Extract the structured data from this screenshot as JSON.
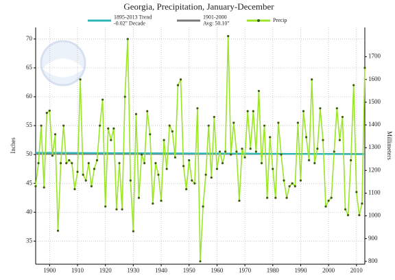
{
  "chart_data": {
    "type": "line",
    "title": "Georgia, Precipitation, January-December",
    "y_label": "Inches",
    "y2_label": "Millimeters",
    "xlim": [
      1895,
      2013
    ],
    "xticks": [
      1900,
      1910,
      1920,
      1930,
      1940,
      1950,
      1960,
      1970,
      1980,
      1990,
      2000,
      2010
    ],
    "ylim": [
      31,
      72
    ],
    "yticks": [
      35,
      40,
      45,
      50,
      55,
      60,
      65,
      70
    ],
    "y2lim": [
      787.4,
      1828.8
    ],
    "y2ticks": [
      800,
      900,
      1000,
      1100,
      1200,
      1300,
      1400,
      1500,
      1600,
      1700
    ],
    "grid": true,
    "series": [
      {
        "name": [
          "Precip"
        ],
        "color": "#99e526",
        "marker_color": "#3d5c0a",
        "x": [
          1895,
          1896,
          1897,
          1898,
          1899,
          1900,
          1901,
          1902,
          1903,
          1904,
          1905,
          1906,
          1907,
          1908,
          1909,
          1910,
          1911,
          1912,
          1913,
          1914,
          1915,
          1916,
          1917,
          1918,
          1919,
          1920,
          1921,
          1922,
          1923,
          1924,
          1925,
          1926,
          1927,
          1928,
          1929,
          1930,
          1931,
          1932,
          1933,
          1934,
          1935,
          1936,
          1937,
          1938,
          1939,
          1940,
          1941,
          1942,
          1943,
          1944,
          1945,
          1946,
          1947,
          1948,
          1949,
          1950,
          1951,
          1952,
          1953,
          1954,
          1955,
          1956,
          1957,
          1958,
          1959,
          1960,
          1961,
          1962,
          1963,
          1964,
          1965,
          1966,
          1967,
          1968,
          1969,
          1970,
          1971,
          1972,
          1973,
          1974,
          1975,
          1976,
          1977,
          1978,
          1979,
          1980,
          1981,
          1982,
          1983,
          1984,
          1985,
          1986,
          1987,
          1988,
          1989,
          1990,
          1991,
          1992,
          1993,
          1994,
          1995,
          1996,
          1997,
          1998,
          1999,
          2000,
          2001,
          2002,
          2003,
          2004,
          2005,
          2006,
          2007,
          2008,
          2009,
          2010,
          2011,
          2012,
          2013
        ],
        "values": [
          44.5,
          48.5,
          55,
          44.3,
          57.2,
          57.6,
          49.8,
          53.5,
          36.8,
          48.5,
          55,
          48.5,
          49,
          48.5,
          44,
          47,
          63,
          46.5,
          45.5,
          48.5,
          44.5,
          47.5,
          49,
          55,
          59.5,
          41,
          54.5,
          52.5,
          54.5,
          40.5,
          48.5,
          40.5,
          60,
          70,
          45.5,
          36.7,
          57,
          42.5,
          50,
          48.5,
          57.5,
          53.5,
          41.5,
          48.5,
          46.5,
          42,
          52.5,
          47.5,
          55,
          54,
          49.5,
          62,
          63,
          48,
          44,
          49,
          45.5,
          45,
          58,
          31.5,
          41,
          46.5,
          55,
          46,
          56.5,
          47.5,
          50.5,
          48.5,
          50.5,
          70.5,
          50,
          55.5,
          50.5,
          42,
          51,
          49.5,
          57.5,
          51,
          57.5,
          50.5,
          61,
          48.5,
          55,
          42.5,
          53,
          47.5,
          42.5,
          55.5,
          50,
          45.5,
          42.5,
          44.5,
          45,
          44.5,
          55.5,
          45.5,
          57.5,
          53,
          49,
          63,
          48.5,
          51,
          58,
          52.5,
          41,
          42,
          42.5,
          50.5,
          58,
          52.5,
          56.5,
          40.5,
          39.5,
          49,
          62,
          43.5,
          39.5,
          41.5,
          65
        ]
      },
      {
        "name": [
          "1895-2013 Trend",
          "-0.02\" Decade"
        ],
        "color": "#2fb7b7",
        "x": [
          1895,
          2013
        ],
        "values": [
          50.3,
          50.06
        ]
      },
      {
        "name": [
          "1901-2000",
          "Avg: 50.10\""
        ],
        "color": "#7a7a7a",
        "x": [
          1895,
          2013
        ],
        "values": [
          50.1,
          50.1
        ]
      }
    ]
  }
}
